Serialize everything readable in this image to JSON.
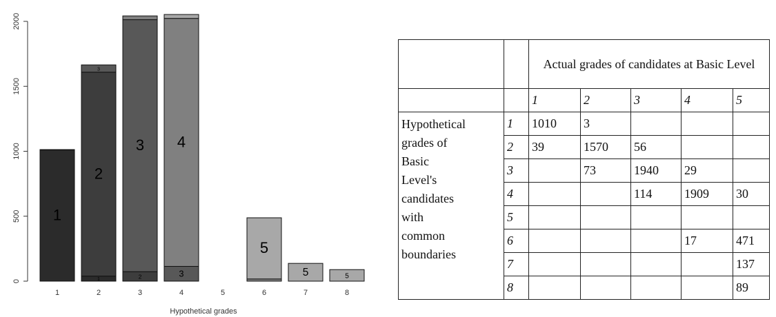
{
  "chart_data": {
    "type": "stacked_bar",
    "xlabel": "Hypothetical grades",
    "categories": [
      "1",
      "2",
      "3",
      "4",
      "5",
      "6",
      "7",
      "8"
    ],
    "series": [
      {
        "name": "1",
        "color": "#2b2b2b",
        "values": [
          1010,
          39,
          null,
          null,
          null,
          null,
          null,
          null
        ]
      },
      {
        "name": "2",
        "color": "#3d3d3d",
        "values": [
          3,
          1570,
          73,
          null,
          null,
          null,
          null,
          null
        ]
      },
      {
        "name": "3",
        "color": "#585858",
        "values": [
          null,
          56,
          1940,
          114,
          null,
          null,
          null,
          null
        ]
      },
      {
        "name": "4",
        "color": "#808080",
        "values": [
          null,
          null,
          29,
          1909,
          null,
          17,
          null,
          null
        ]
      },
      {
        "name": "5",
        "color": "#a8a8a8",
        "values": [
          null,
          null,
          null,
          30,
          null,
          471,
          137,
          89
        ]
      }
    ],
    "ylim": [
      0,
      2100
    ],
    "yticks": [
      0,
      500,
      1000,
      1500,
      2000
    ]
  },
  "table": {
    "header": "Actual grades of candidates at Basic Level",
    "row_label_lines": [
      "Hypothetical",
      "grades of",
      "Basic",
      "Level's",
      "candidates",
      "with",
      "common",
      "boundaries"
    ]
  }
}
